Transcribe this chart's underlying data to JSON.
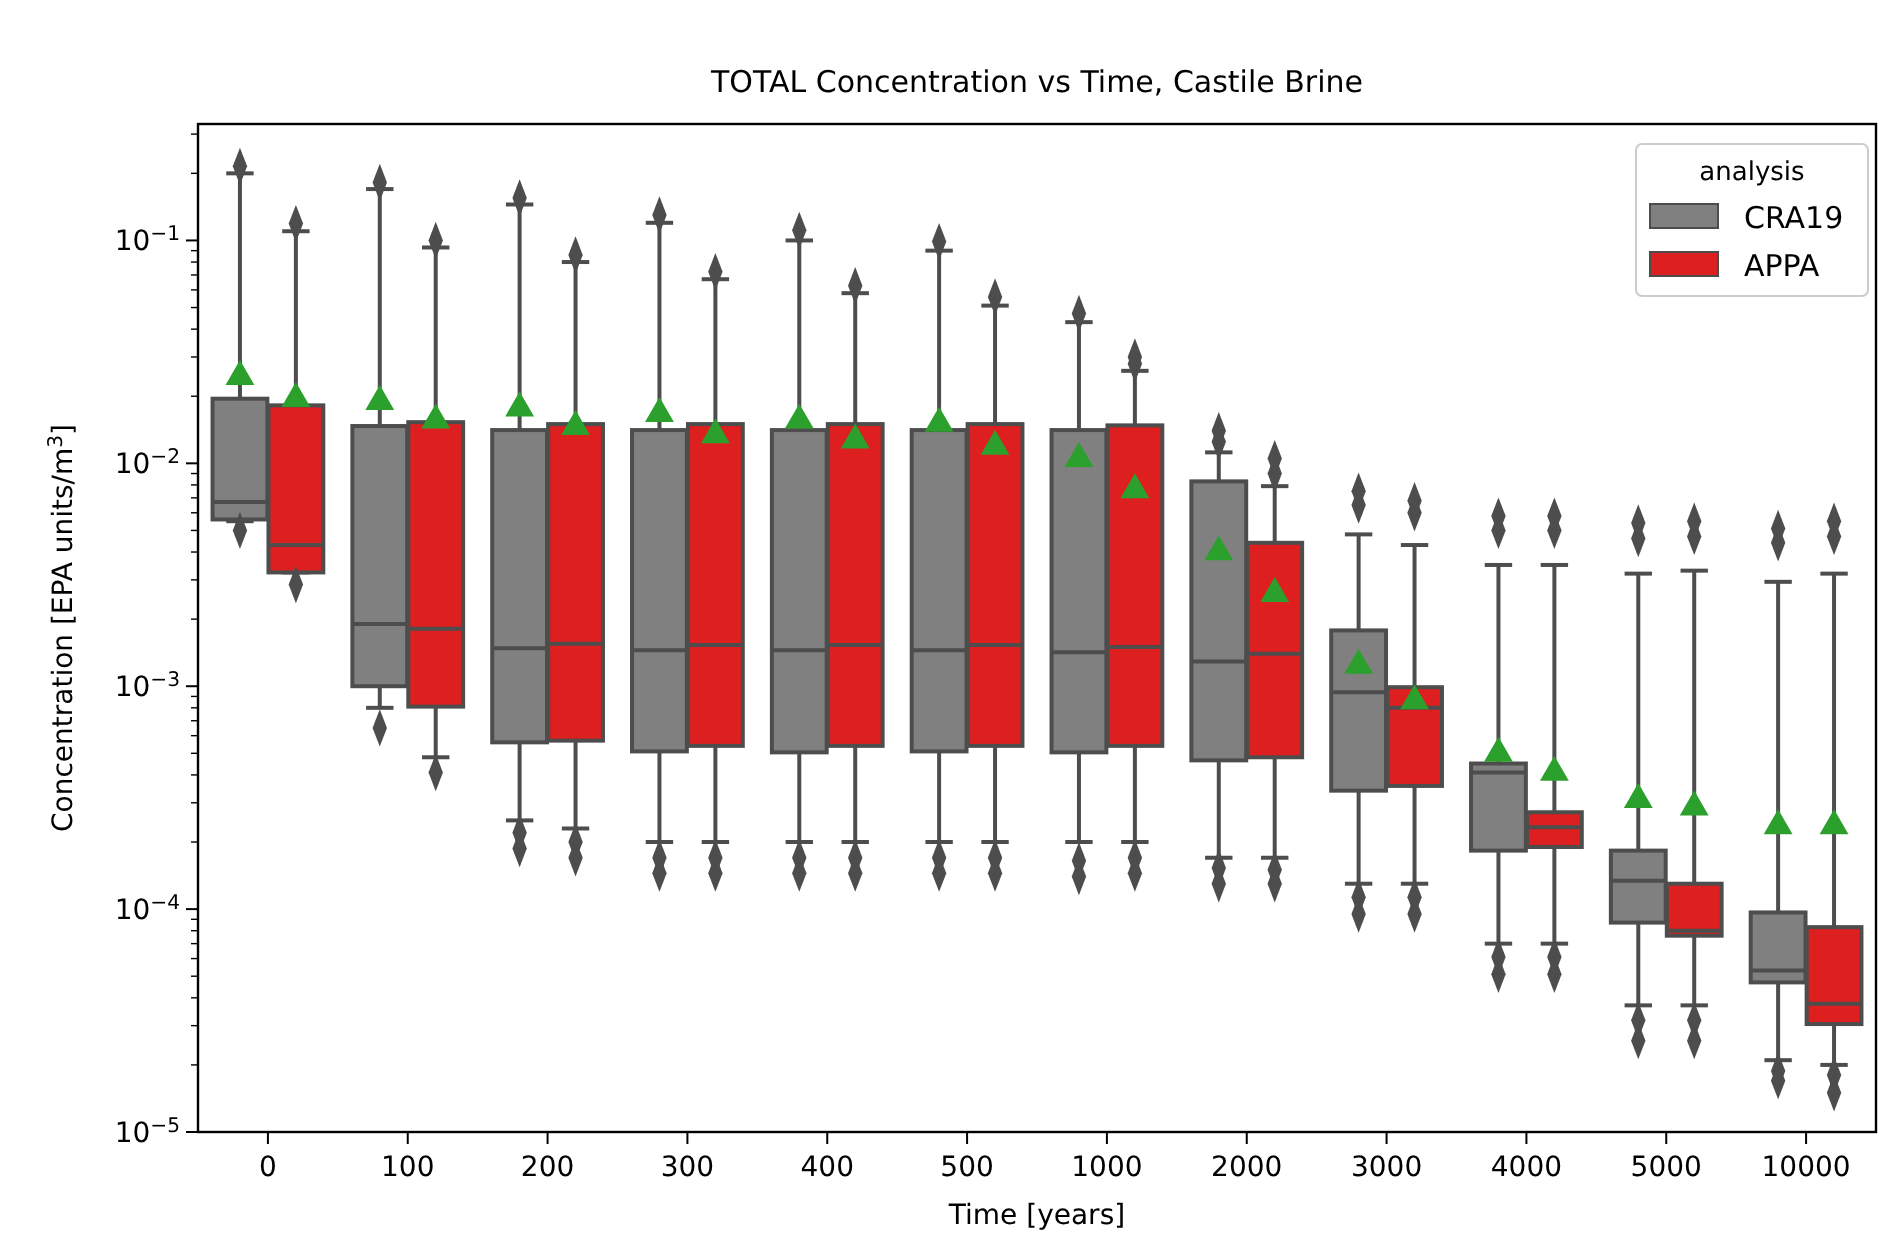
{
  "chart_data": {
    "type": "box",
    "title": "TOTAL Concentration vs Time, Castile Brine",
    "xlabel": "Time [years]",
    "ylabel": "Concentration [EPA units/m$^{3}$]",
    "legend_title": "analysis",
    "legend": "top right",
    "log": true,
    "grid": false,
    "categories": [
      "0",
      "100",
      "200",
      "300",
      "400",
      "500",
      "1000",
      "2000",
      "3000",
      "4000",
      "5000",
      "10000"
    ],
    "ylim": [
      1e-05,
      0.333
    ],
    "yticks": [
      {
        "value": 1e-05,
        "label": "10$^{−5}$"
      },
      {
        "value": 2e-05,
        "label": null
      },
      {
        "value": 3e-05,
        "label": null
      },
      {
        "value": 4e-05,
        "label": null
      },
      {
        "value": 5e-05,
        "label": null
      },
      {
        "value": 6e-05,
        "label": null
      },
      {
        "value": 7e-05,
        "label": null
      },
      {
        "value": 8e-05,
        "label": null
      },
      {
        "value": 9e-05,
        "label": null
      },
      {
        "value": 0.0001,
        "label": "10$^{−4}$"
      },
      {
        "value": 0.0002,
        "label": null
      },
      {
        "value": 0.0003,
        "label": null
      },
      {
        "value": 0.0004,
        "label": null
      },
      {
        "value": 0.0005,
        "label": null
      },
      {
        "value": 0.0006,
        "label": null
      },
      {
        "value": 0.0007,
        "label": null
      },
      {
        "value": 0.0008,
        "label": null
      },
      {
        "value": 0.0009,
        "label": null
      },
      {
        "value": 0.001,
        "label": "10$^{−3}$"
      },
      {
        "value": 0.002,
        "label": null
      },
      {
        "value": 0.003,
        "label": null
      },
      {
        "value": 0.004,
        "label": null
      },
      {
        "value": 0.005,
        "label": null
      },
      {
        "value": 0.006,
        "label": null
      },
      {
        "value": 0.007,
        "label": null
      },
      {
        "value": 0.008,
        "label": null
      },
      {
        "value": 0.009,
        "label": null
      },
      {
        "value": 0.01,
        "label": "10$^{−2}$"
      },
      {
        "value": 0.02,
        "label": null
      },
      {
        "value": 0.03,
        "label": null
      },
      {
        "value": 0.04,
        "label": null
      },
      {
        "value": 0.05,
        "label": null
      },
      {
        "value": 0.06,
        "label": null
      },
      {
        "value": 0.07,
        "label": null
      },
      {
        "value": 0.08,
        "label": null
      },
      {
        "value": 0.09,
        "label": null
      },
      {
        "value": 0.1,
        "label": "10$^{−1}$"
      },
      {
        "value": 0.2,
        "label": null
      },
      {
        "value": 0.3,
        "label": null
      }
    ],
    "series": [
      {
        "name": "CRA19",
        "color": "#808080",
        "boxes": [
          {
            "low": 0.0055,
            "q1": 0.0056,
            "median": 0.0067,
            "q3": 0.0195,
            "high": 0.2,
            "mean": 0.0245,
            "outliers": [
              0.005,
              0.215
            ]
          },
          {
            "low": 0.0008,
            "q1": 0.001,
            "median": 0.0019,
            "q3": 0.0147,
            "high": 0.17,
            "mean": 0.0189,
            "outliers": [
              0.00065,
              0.182
            ]
          },
          {
            "low": 0.00025,
            "q1": 0.00056,
            "median": 0.00148,
            "q3": 0.0141,
            "high": 0.145,
            "mean": 0.0177,
            "outliers": [
              0.00022,
              0.000187,
              0.155
            ]
          },
          {
            "low": 0.0002,
            "q1": 0.00051,
            "median": 0.00145,
            "q3": 0.0141,
            "high": 0.12,
            "mean": 0.0167,
            "outliers": [
              0.00017,
              0.000145,
              0.13
            ]
          },
          {
            "low": 0.0002,
            "q1": 0.000505,
            "median": 0.00145,
            "q3": 0.0141,
            "high": 0.1,
            "mean": 0.0156,
            "outliers": [
              0.00017,
              0.000145,
              0.111
            ]
          },
          {
            "low": 0.0002,
            "q1": 0.00051,
            "median": 0.00145,
            "q3": 0.0141,
            "high": 0.09,
            "mean": 0.0151,
            "outliers": [
              0.00017,
              0.000145,
              0.0988
            ]
          },
          {
            "low": 0.0002,
            "q1": 0.000505,
            "median": 0.00142,
            "q3": 0.0141,
            "high": 0.043,
            "mean": 0.0105,
            "outliers": [
              0.000165,
              0.00014,
              0.047
            ]
          },
          {
            "low": 0.00017,
            "q1": 0.000465,
            "median": 0.00129,
            "q3": 0.0083,
            "high": 0.0112,
            "mean": 0.004,
            "outliers": [
              0.000153,
              0.00013,
              0.0125,
              0.014
            ]
          },
          {
            "low": 0.00013,
            "q1": 0.00034,
            "median": 0.00094,
            "q3": 0.00178,
            "high": 0.0048,
            "mean": 0.00124,
            "outliers": [
              0.000113,
              9.5e-05,
              0.0065,
              0.0075
            ]
          },
          {
            "low": 7e-05,
            "q1": 0.000183,
            "median": 0.00041,
            "q3": 0.00045,
            "high": 0.0035,
            "mean": 0.0005,
            "outliers": [
              6.1e-05,
              5.1e-05,
              0.005,
              0.0058
            ]
          },
          {
            "low": 3.7e-05,
            "q1": 8.7e-05,
            "median": 0.000134,
            "q3": 0.000183,
            "high": 0.0032,
            "mean": 0.00031,
            "outliers": [
              3.17e-05,
              2.57e-05,
              0.0046,
              0.0054
            ]
          },
          {
            "low": 2.1e-05,
            "q1": 4.69e-05,
            "median": 5.3e-05,
            "q3": 9.66e-05,
            "high": 0.00294,
            "mean": 0.000236,
            "outliers": [
              1.88e-05,
              1.7e-05,
              0.0044,
              0.0051
            ]
          }
        ]
      },
      {
        "name": "APPA",
        "color": "#de1f1f",
        "boxes": [
          {
            "low": 0.00324,
            "q1": 0.00324,
            "median": 0.0043,
            "q3": 0.0182,
            "high": 0.11,
            "mean": 0.0195,
            "outliers": [
              0.00286,
              0.119
            ]
          },
          {
            "low": 0.00048,
            "q1": 0.00081,
            "median": 0.00181,
            "q3": 0.0153,
            "high": 0.093,
            "mean": 0.0156,
            "outliers": [
              0.00041,
              0.1
            ]
          },
          {
            "low": 0.00023,
            "q1": 0.00057,
            "median": 0.00155,
            "q3": 0.015,
            "high": 0.08,
            "mean": 0.0146,
            "outliers": [
              0.0002,
              0.00017,
              0.086
            ]
          },
          {
            "low": 0.0002,
            "q1": 0.00054,
            "median": 0.00153,
            "q3": 0.015,
            "high": 0.067,
            "mean": 0.0134,
            "outliers": [
              0.00017,
              0.000145,
              0.0724
            ]
          },
          {
            "low": 0.0002,
            "q1": 0.00054,
            "median": 0.00153,
            "q3": 0.015,
            "high": 0.058,
            "mean": 0.0127,
            "outliers": [
              0.00017,
              0.000145,
              0.0627
            ]
          },
          {
            "low": 0.0002,
            "q1": 0.00054,
            "median": 0.00153,
            "q3": 0.015,
            "high": 0.051,
            "mean": 0.0119,
            "outliers": [
              0.00017,
              0.000145,
              0.0558
            ]
          },
          {
            "low": 0.0002,
            "q1": 0.00054,
            "median": 0.0015,
            "q3": 0.0148,
            "high": 0.026,
            "mean": 0.0076,
            "outliers": [
              0.00017,
              0.000145,
              0.028,
              0.03
            ]
          },
          {
            "low": 0.00017,
            "q1": 0.00048,
            "median": 0.0014,
            "q3": 0.0044,
            "high": 0.0079,
            "mean": 0.0026,
            "outliers": [
              0.00015,
              0.00013,
              0.009,
              0.0105
            ]
          },
          {
            "low": 0.00013,
            "q1": 0.000357,
            "median": 0.0008,
            "q3": 0.00099,
            "high": 0.0043,
            "mean": 0.00086,
            "outliers": [
              0.000113,
              9.5e-05,
              0.006,
              0.0068
            ]
          },
          {
            "low": 7e-05,
            "q1": 0.00019,
            "median": 0.000233,
            "q3": 0.000272,
            "high": 0.0035,
            "mean": 0.00041,
            "outliers": [
              6.1e-05,
              5.1e-05,
              0.005,
              0.0058
            ]
          },
          {
            "low": 3.7e-05,
            "q1": 7.6e-05,
            "median": 8e-05,
            "q3": 0.00013,
            "high": 0.0033,
            "mean": 0.000287,
            "outliers": [
              3.17e-05,
              2.57e-05,
              0.0047,
              0.0055
            ]
          },
          {
            "low": 2e-05,
            "q1": 3.05e-05,
            "median": 3.76e-05,
            "q3": 8.3e-05,
            "high": 0.0032,
            "mean": 0.000236,
            "outliers": [
              1.8e-05,
              1.5e-05,
              0.0047,
              0.0055
            ]
          }
        ]
      }
    ]
  }
}
